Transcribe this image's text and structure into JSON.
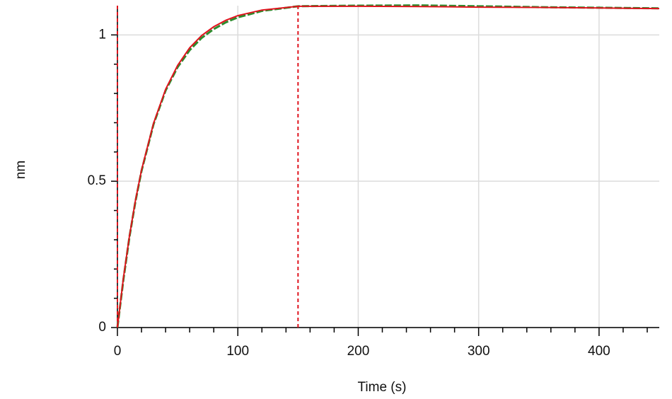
{
  "chart_data": {
    "type": "line",
    "xlabel": "Time (s)",
    "ylabel": "nm",
    "x": [
      0,
      5,
      10,
      15,
      20,
      30,
      40,
      50,
      60,
      70,
      80,
      90,
      100,
      120,
      150,
      200,
      250,
      300,
      350,
      400,
      450
    ],
    "series": [
      {
        "color": "#2e8b2e",
        "dashed": true,
        "values": [
          0,
          0.165,
          0.31,
          0.432,
          0.535,
          0.695,
          0.81,
          0.89,
          0.948,
          0.99,
          1.02,
          1.043,
          1.06,
          1.082,
          1.098,
          1.1,
          1.101,
          1.098,
          1.095,
          1.093,
          1.091
        ]
      },
      {
        "color": "#e0141e",
        "values": [
          0,
          0.17,
          0.313,
          0.435,
          0.538,
          0.698,
          0.814,
          0.896,
          0.956,
          0.998,
          1.028,
          1.05,
          1.066,
          1.085,
          1.098,
          1.098,
          1.097,
          1.095,
          1.094,
          1.092,
          1.09
        ]
      }
    ],
    "vlines": {
      "color": "#e0141e",
      "values": [
        0,
        150
      ]
    },
    "xlim": [
      0,
      450
    ],
    "ylim": [
      0,
      1.1
    ],
    "xticks": [
      0,
      100,
      200,
      300,
      400
    ],
    "yticks": [
      0,
      0.5,
      1
    ],
    "xticks_minor": [
      20,
      40,
      60,
      80,
      120,
      140,
      160,
      180,
      220,
      240,
      260,
      280,
      320,
      340,
      360,
      380,
      420,
      440
    ],
    "yticks_minor": [
      0.1,
      0.2,
      0.3,
      0.4,
      0.6,
      0.7,
      0.8,
      0.9
    ],
    "grid": true
  }
}
